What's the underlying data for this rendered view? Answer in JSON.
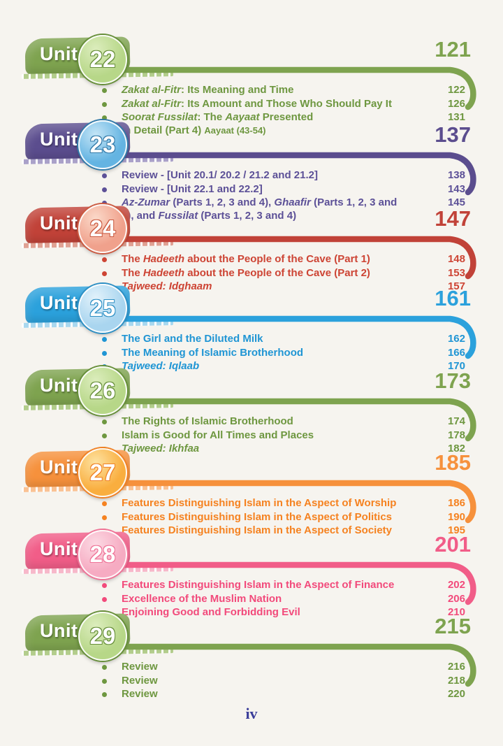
{
  "page": {
    "background": "#f6f4ef",
    "footer_page_number": "iv"
  },
  "toc": {
    "unit_label": "Unit",
    "units": [
      {
        "number": "22",
        "page": "121",
        "theme": {
          "banner": "#7ea34f",
          "item": "#6e9740",
          "circle_fill": "#b7d788",
          "circle_light": "#dcedbd",
          "circle_edge": "#678f3a",
          "dash_tint": "#b3cd8c"
        },
        "items": [
          {
            "page": "122",
            "segments": [
              {
                "t": "Zakat al-Fitr",
                "i": true
              },
              {
                "t": ": Its Meaning and Time"
              }
            ]
          },
          {
            "page": "126",
            "segments": [
              {
                "t": "Zakat al-Fitr",
                "i": true
              },
              {
                "t": ": Its Amount and Those Who Should Pay It"
              }
            ]
          },
          {
            "page": "131",
            "segments": [
              {
                "t": "Soorat Fussilat",
                "i": true
              },
              {
                "t": ": The "
              },
              {
                "t": "Aayaat",
                "i": true
              },
              {
                "t": " Presented"
              },
              {
                "br": true
              },
              {
                "t": "in Detail (Part 4) "
              },
              {
                "t": "Aayaat (43-54)",
                "s": true
              }
            ]
          }
        ]
      },
      {
        "number": "23",
        "page": "137",
        "theme": {
          "banner": "#5b4d8e",
          "item": "#5c5097",
          "circle_fill": "#64b4e2",
          "circle_light": "#c4e5f6",
          "circle_edge": "#3179a8",
          "dash_tint": "#aaa1c9"
        },
        "items": [
          {
            "page": "138",
            "segments": [
              {
                "t": "Review - [Unit 20.1/ 20.2 / 21.2 and 21.2]"
              }
            ]
          },
          {
            "page": "143",
            "segments": [
              {
                "t": "Review - [Unit 22.1 and 22.2]"
              }
            ]
          },
          {
            "page": "145",
            "segments": [
              {
                "t": "Az-Zumar",
                "i": true
              },
              {
                "t": " (Parts 1, 2, 3 and 4), "
              },
              {
                "t": "Ghaafir",
                "i": true
              },
              {
                "t": " (Parts 1, 2, 3 and"
              },
              {
                "br": true
              },
              {
                "t": "4), and "
              },
              {
                "t": "Fussilat",
                "i": true
              },
              {
                "t": " (Parts 1, 2, 3 and 4)"
              }
            ]
          }
        ]
      },
      {
        "number": "24",
        "page": "147",
        "theme": {
          "banner": "#c14238",
          "item": "#cd4434",
          "circle_fill": "#f0a18c",
          "circle_light": "#fbd9c9",
          "circle_edge": "#cb5a41",
          "dash_tint": "#e0a294"
        },
        "items": [
          {
            "page": "148",
            "segments": [
              {
                "t": "The "
              },
              {
                "t": "Hadeeth",
                "i": true
              },
              {
                "t": " about the People of the Cave (Part 1)"
              }
            ]
          },
          {
            "page": "153",
            "segments": [
              {
                "t": "The "
              },
              {
                "t": "Hadeeth",
                "i": true
              },
              {
                "t": " about the People of the Cave (Part 2)"
              }
            ]
          },
          {
            "page": "157",
            "segments": [
              {
                "t": "Tajweed: Idghaam",
                "i": true
              }
            ]
          }
        ]
      },
      {
        "number": "25",
        "page": "161",
        "theme": {
          "banner": "#2ba1dc",
          "item": "#1f95d4",
          "circle_fill": "#a9d5ef",
          "circle_light": "#e2f2fb",
          "circle_edge": "#2d8fc4",
          "dash_tint": "#a9d8ef"
        },
        "items": [
          {
            "page": "162",
            "segments": [
              {
                "t": "The Girl and the Diluted Milk"
              }
            ]
          },
          {
            "page": "166",
            "segments": [
              {
                "t": "The Meaning of Islamic Brotherhood"
              }
            ]
          },
          {
            "page": "170",
            "segments": [
              {
                "t": "Tajweed: Iqlaab",
                "i": true
              }
            ]
          }
        ]
      },
      {
        "number": "26",
        "page": "173",
        "theme": {
          "banner": "#7ea34f",
          "item": "#6e9740",
          "circle_fill": "#b7d788",
          "circle_light": "#dcedbd",
          "circle_edge": "#678f3a",
          "dash_tint": "#b3cd8c"
        },
        "items": [
          {
            "page": "174",
            "segments": [
              {
                "t": "The Rights of Islamic Brotherhood"
              }
            ]
          },
          {
            "page": "178",
            "segments": [
              {
                "t": "Islam is Good for All Times and Places"
              }
            ]
          },
          {
            "page": "182",
            "segments": [
              {
                "t": "Tajweed: Ikhfaa",
                "i": true
              }
            ]
          }
        ]
      },
      {
        "number": "27",
        "page": "185",
        "theme": {
          "banner": "#f6913c",
          "item": "#f58220",
          "circle_fill": "#f9ae3f",
          "circle_light": "#fde2a0",
          "circle_edge": "#f08125",
          "dash_tint": "#fac294"
        },
        "items": [
          {
            "page": "186",
            "segments": [
              {
                "t": "Features Distinguishing Islam in the Aspect of Worship"
              }
            ]
          },
          {
            "page": "190",
            "segments": [
              {
                "t": "Features Distinguishing Islam in the Aspect of Politics"
              }
            ]
          },
          {
            "page": "195",
            "segments": [
              {
                "t": "Features Distinguishing Islam in the Aspect of Society"
              }
            ]
          }
        ]
      },
      {
        "number": "28",
        "page": "201",
        "theme": {
          "banner": "#f15d88",
          "item": "#f24a7b",
          "circle_fill": "#f6abc2",
          "circle_light": "#fcd9e3",
          "circle_edge": "#ef7397",
          "dash_tint": "#f7b8ca"
        },
        "items": [
          {
            "page": "202",
            "segments": [
              {
                "t": "Features Distinguishing Islam in the Aspect of Finance"
              }
            ]
          },
          {
            "page": "206",
            "segments": [
              {
                "t": "Excellence of the Muslim Nation"
              }
            ]
          },
          {
            "page": "210",
            "segments": [
              {
                "t": "Enjoining Good and Forbidding Evil"
              }
            ]
          }
        ]
      },
      {
        "number": "29",
        "page": "215",
        "theme": {
          "banner": "#7ea34f",
          "item": "#6e9740",
          "circle_fill": "#b7d788",
          "circle_light": "#dcedbd",
          "circle_edge": "#678f3a",
          "dash_tint": "#b3cd8c"
        },
        "items": [
          {
            "page": "216",
            "segments": [
              {
                "t": "Review"
              }
            ]
          },
          {
            "page": "218",
            "segments": [
              {
                "t": "Review"
              }
            ]
          },
          {
            "page": "220",
            "segments": [
              {
                "t": "Review"
              }
            ]
          }
        ]
      }
    ]
  }
}
